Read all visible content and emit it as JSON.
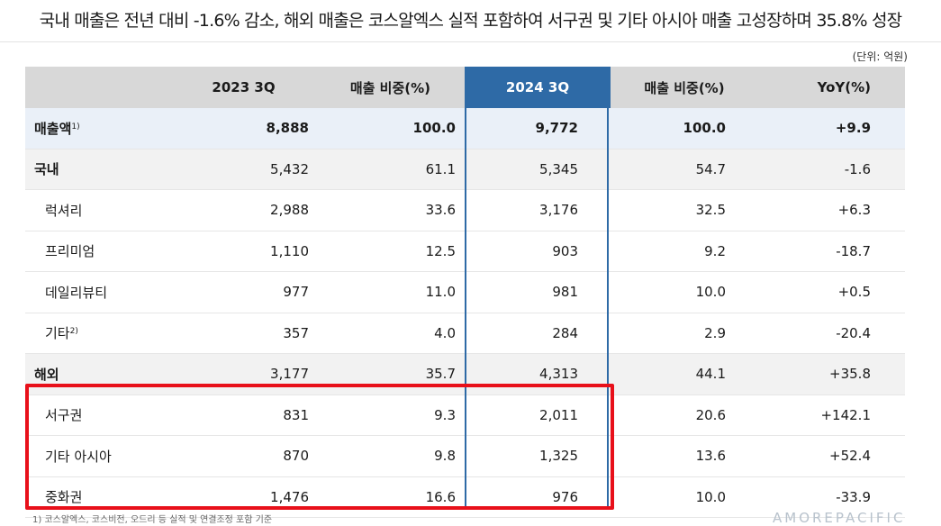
{
  "headline": "국내 매출은 전년 대비 -1.6% 감소, 해외 매출은 코스알엑스 실적 포함하여 서구권 및 기타 아시아 매출 고성장하며 35.8% 성장",
  "unit": "(단위: 억원)",
  "table": {
    "headers": [
      "",
      "2023 3Q",
      "매출 비중(%)",
      "2024 3Q",
      "매출 비중(%)",
      "YoY(%)"
    ],
    "rows": [
      {
        "label": "매출액",
        "note": "1)",
        "v": [
          "8,888",
          "100.0",
          "9,772",
          "100.0",
          "+9.9"
        ]
      },
      {
        "label": "국내",
        "note": "",
        "v": [
          "5,432",
          "61.1",
          "5,345",
          "54.7",
          "-1.6"
        ]
      },
      {
        "label": "럭셔리",
        "note": "",
        "v": [
          "2,988",
          "33.6",
          "3,176",
          "32.5",
          "+6.3"
        ]
      },
      {
        "label": "프리미엄",
        "note": "",
        "v": [
          "1,110",
          "12.5",
          "903",
          "9.2",
          "-18.7"
        ]
      },
      {
        "label": "데일리뷰티",
        "note": "",
        "v": [
          "977",
          "11.0",
          "981",
          "10.0",
          "+0.5"
        ]
      },
      {
        "label": "기타",
        "note": "2)",
        "v": [
          "357",
          "4.0",
          "284",
          "2.9",
          "-20.4"
        ]
      },
      {
        "label": "해외",
        "note": "",
        "v": [
          "3,177",
          "35.7",
          "4,313",
          "44.1",
          "+35.8"
        ]
      },
      {
        "label": "서구권",
        "note": "",
        "v": [
          "831",
          "9.3",
          "2,011",
          "20.6",
          "+142.1"
        ]
      },
      {
        "label": "기타 아시아",
        "note": "",
        "v": [
          "870",
          "9.8",
          "1,325",
          "13.6",
          "+52.4"
        ]
      },
      {
        "label": "중화권",
        "note": "",
        "v": [
          "1,476",
          "16.6",
          "976",
          "10.0",
          "-33.9"
        ]
      }
    ]
  },
  "footnote": "1) 코스알엑스, 코스비전, 오드리 등 실적 및 연결조정 포함 기준",
  "logo": "AMOREPACIFIC"
}
